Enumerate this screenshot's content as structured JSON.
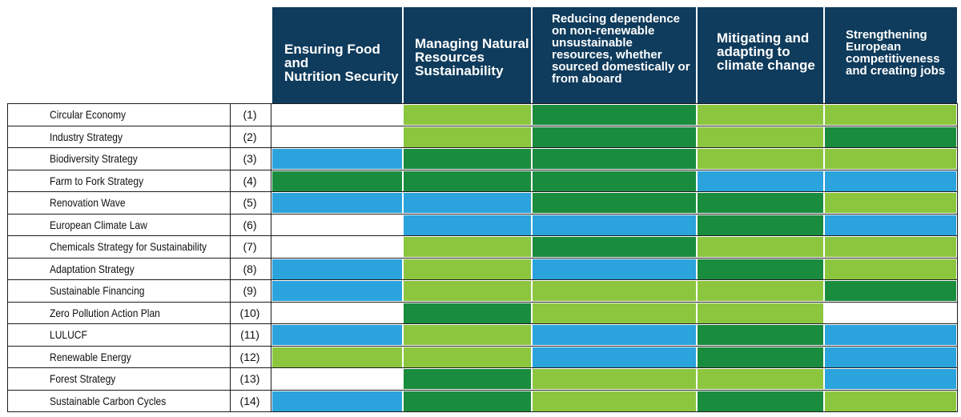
{
  "colors": {
    "header": "#0f3b5c",
    "light_green": "#8cc63f",
    "dark_green": "#1a8c3e",
    "blue": "#2ba3dc",
    "white": "#ffffff"
  },
  "columns": [
    {
      "label": "Ensuring Food and\nNutrition Security"
    },
    {
      "label": "Managing Natural\nResources\nSustainability"
    },
    {
      "label": "Reducing dependence\non non-renewable\nunsustainable\nresources, whether\nsourced domestically or\nfrom aboard"
    },
    {
      "label": "Mitigating and\nadapting to\nclimate change"
    },
    {
      "label": "Strengthening\nEuropean\ncompetitiveness\nand creating jobs"
    }
  ],
  "rows": [
    {
      "label": "Circular Economy",
      "num": "(1)",
      "cells": [
        "white",
        "light_green",
        "dark_green",
        "light_green",
        "light_green"
      ]
    },
    {
      "label": "Industry Strategy",
      "num": "(2)",
      "cells": [
        "white",
        "light_green",
        "dark_green",
        "light_green",
        "dark_green"
      ]
    },
    {
      "label": "Biodiversity Strategy",
      "num": "(3)",
      "cells": [
        "blue",
        "dark_green",
        "dark_green",
        "light_green",
        "light_green"
      ]
    },
    {
      "label": "Farm to Fork Strategy",
      "num": "(4)",
      "cells": [
        "dark_green",
        "dark_green",
        "dark_green",
        "blue",
        "blue"
      ]
    },
    {
      "label": "Renovation Wave",
      "num": "(5)",
      "cells": [
        "blue",
        "blue",
        "dark_green",
        "dark_green",
        "light_green"
      ]
    },
    {
      "label": "European Climate Law",
      "num": "(6)",
      "cells": [
        "white",
        "blue",
        "blue",
        "dark_green",
        "blue"
      ]
    },
    {
      "label": "Chemicals Strategy for Sustainability",
      "num": "(7)",
      "cells": [
        "white",
        "light_green",
        "dark_green",
        "light_green",
        "light_green"
      ]
    },
    {
      "label": "Adaptation Strategy",
      "num": "(8)",
      "cells": [
        "blue",
        "light_green",
        "blue",
        "dark_green",
        "light_green"
      ]
    },
    {
      "label": "Sustainable Financing",
      "num": "(9)",
      "cells": [
        "blue",
        "light_green",
        "light_green",
        "light_green",
        "dark_green"
      ]
    },
    {
      "label": "Zero Pollution Action Plan",
      "num": "(10)",
      "cells": [
        "white",
        "dark_green",
        "light_green",
        "light_green",
        "white"
      ]
    },
    {
      "label": "LULUCF",
      "num": "(11)",
      "cells": [
        "blue",
        "light_green",
        "blue",
        "dark_green",
        "blue"
      ]
    },
    {
      "label": "Renewable Energy",
      "num": "(12)",
      "cells": [
        "light_green",
        "light_green",
        "blue",
        "dark_green",
        "blue"
      ]
    },
    {
      "label": "Forest Strategy",
      "num": "(13)",
      "cells": [
        "white",
        "dark_green",
        "light_green",
        "light_green",
        "blue"
      ]
    },
    {
      "label": "Sustainable Carbon Cycles",
      "num": "(14)",
      "cells": [
        "blue",
        "dark_green",
        "light_green",
        "dark_green",
        "light_green"
      ]
    }
  ]
}
